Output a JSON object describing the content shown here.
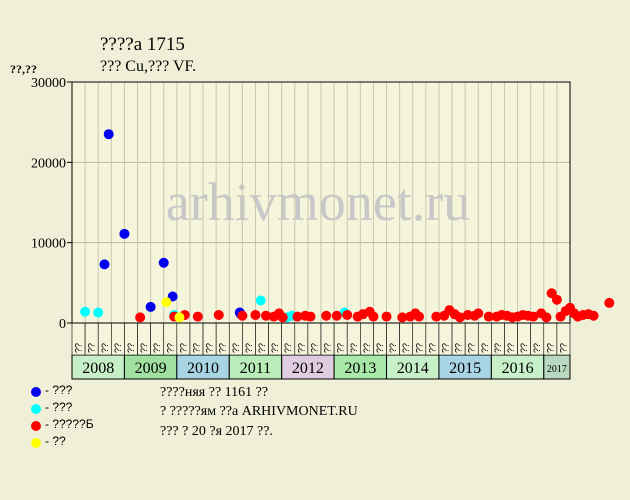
{
  "header": {
    "title": "????а 1715",
    "subtitle": "??? Cu,??? VF.",
    "y_unit": "??,??"
  },
  "watermark": "arhivmonet.ru",
  "footer": {
    "line1": "????няя ?? 1161 ??",
    "line2": "? ?????ям ??а ARHIVMONET.RU",
    "line3": "??? ? 20 ?я 2017 ??."
  },
  "legend": [
    {
      "label": "- ???",
      "color": "#0000ee"
    },
    {
      "label": "- ???",
      "color": "#00ffff"
    },
    {
      "label": "- ?????Б",
      "color": "#ff0000"
    },
    {
      "label": "- ??",
      "color": "#ffff00"
    }
  ],
  "chart_data": {
    "type": "scatter",
    "ylim": [
      0,
      30000
    ],
    "y_ticks": [
      0,
      10000,
      20000,
      30000
    ],
    "grid": true,
    "years": [
      {
        "label": "2008",
        "color": "#c8f0c8",
        "periods": 4
      },
      {
        "label": "2009",
        "color": "#a0e0a0",
        "periods": 4
      },
      {
        "label": "2010",
        "color": "#a8d4e4",
        "periods": 4
      },
      {
        "label": "2011",
        "color": "#b8ecb8",
        "periods": 4
      },
      {
        "label": "2012",
        "color": "#e0cce0",
        "periods": 4
      },
      {
        "label": "2013",
        "color": "#a8e8a8",
        "periods": 4
      },
      {
        "label": "2014",
        "color": "#c8f0c8",
        "periods": 4
      },
      {
        "label": "2015",
        "color": "#a8d4e4",
        "periods": 4
      },
      {
        "label": "2016",
        "color": "#c8f0c8",
        "periods": 4
      },
      {
        "label": "2017",
        "color": "#b8d8c0",
        "periods": 2
      }
    ],
    "period_labels": [
      "??",
      "??",
      "??",
      "??"
    ],
    "series": [
      {
        "color": "#0000ee",
        "points": [
          [
            2008.7,
            23500
          ],
          [
            2008.62,
            7300
          ],
          [
            2009.0,
            11100
          ],
          [
            2009.5,
            2000
          ],
          [
            2009.75,
            7500
          ],
          [
            2009.92,
            3300
          ],
          [
            2011.2,
            1300
          ],
          [
            2011.22,
            1100
          ]
        ]
      },
      {
        "color": "#00ffff",
        "points": [
          [
            2008.25,
            1400
          ],
          [
            2008.5,
            1300
          ],
          [
            2011.6,
            2800
          ],
          [
            2012.1,
            700
          ],
          [
            2012.2,
            900
          ],
          [
            2013.2,
            1300
          ],
          [
            2009.95,
            1000
          ]
        ]
      },
      {
        "color": "#ff0000",
        "points": [
          [
            2009.3,
            700
          ],
          [
            2009.95,
            800
          ],
          [
            2010.15,
            1000
          ],
          [
            2010.4,
            800
          ],
          [
            2010.8,
            1000
          ],
          [
            2011.25,
            900
          ],
          [
            2011.5,
            1000
          ],
          [
            2011.7,
            900
          ],
          [
            2011.85,
            800
          ],
          [
            2011.95,
            1200
          ],
          [
            2012.02,
            700
          ],
          [
            2012.3,
            800
          ],
          [
            2012.45,
            900
          ],
          [
            2012.55,
            800
          ],
          [
            2012.85,
            900
          ],
          [
            2013.05,
            900
          ],
          [
            2013.25,
            1000
          ],
          [
            2013.45,
            800
          ],
          [
            2013.55,
            1100
          ],
          [
            2013.68,
            1400
          ],
          [
            2013.75,
            800
          ],
          [
            2014.0,
            800
          ],
          [
            2014.3,
            700
          ],
          [
            2014.45,
            800
          ],
          [
            2014.55,
            1200
          ],
          [
            2014.62,
            800
          ],
          [
            2014.95,
            800
          ],
          [
            2015.1,
            900
          ],
          [
            2015.2,
            1600
          ],
          [
            2015.3,
            1100
          ],
          [
            2015.4,
            700
          ],
          [
            2015.55,
            1000
          ],
          [
            2015.68,
            900
          ],
          [
            2015.75,
            1200
          ],
          [
            2015.95,
            800
          ],
          [
            2016.1,
            800
          ],
          [
            2016.2,
            1000
          ],
          [
            2016.3,
            900
          ],
          [
            2016.4,
            700
          ],
          [
            2016.5,
            800
          ],
          [
            2016.6,
            1000
          ],
          [
            2016.7,
            900
          ],
          [
            2016.8,
            800
          ],
          [
            2016.95,
            1200
          ],
          [
            2017.05,
            700
          ],
          [
            2017.15,
            3700
          ],
          [
            2017.25,
            2900
          ],
          [
            2017.32,
            800
          ],
          [
            2017.42,
            1500
          ],
          [
            2017.5,
            1900
          ],
          [
            2017.58,
            1200
          ],
          [
            2017.65,
            800
          ],
          [
            2017.75,
            1000
          ],
          [
            2017.85,
            1100
          ],
          [
            2017.95,
            900
          ],
          [
            2018.25,
            2500
          ]
        ]
      },
      {
        "color": "#ffff00",
        "points": [
          [
            2009.8,
            2600
          ],
          [
            2010.05,
            700
          ]
        ]
      }
    ]
  }
}
